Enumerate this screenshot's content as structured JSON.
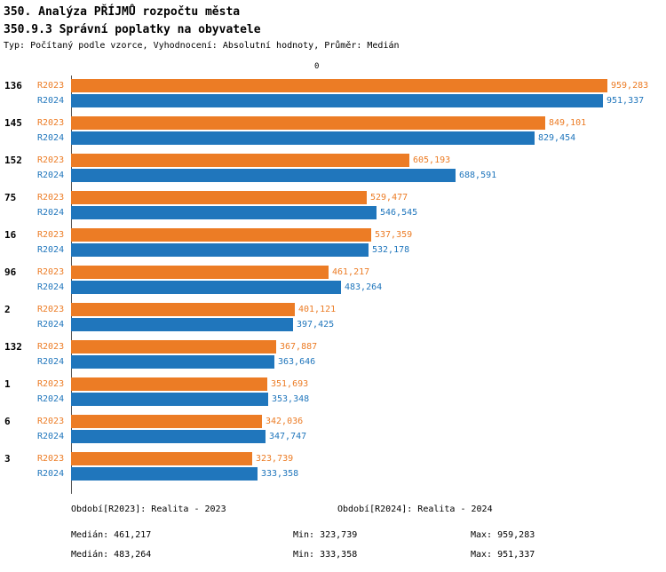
{
  "header": {
    "title": "350. Analýza PŘÍJMŮ rozpočtu města",
    "subtitle": "350.9.3 Správní poplatky na obyvatele",
    "meta": "Typ: Počítaný podle vzorce, Vyhodnocení: Absolutní hodnoty, Průměr: Medián"
  },
  "chart_data": {
    "type": "bar",
    "orientation": "horizontal",
    "axis_top_label": "0",
    "xlim": [
      0,
      960000
    ],
    "grid": false,
    "legend_position": "bottom",
    "series": [
      {
        "id": "R2023",
        "name": "R2023",
        "color": "#EC7C25",
        "median": 461217,
        "legend": "Období[R2023]: Realita - 2023",
        "median_label": "Medián: 461,217",
        "min_label": "Min: 323,739",
        "max_label": "Max: 959,283"
      },
      {
        "id": "R2024",
        "name": "R2024",
        "color": "#2076BC",
        "median": 483264,
        "legend": "Období[R2024]: Realita - 2024",
        "median_label": "Medián: 483,264",
        "min_label": "Min: 333,358",
        "max_label": "Max: 951,337"
      }
    ],
    "categories": [
      "136",
      "145",
      "152",
      "75",
      "16",
      "96",
      "2",
      "132",
      "1",
      "6",
      "3"
    ],
    "rows": [
      {
        "category": "136",
        "values": {
          "R2023": 959283,
          "R2024": 951337
        },
        "labels": {
          "R2023": "959,283",
          "R2024": "951,337"
        }
      },
      {
        "category": "145",
        "values": {
          "R2023": 849101,
          "R2024": 829454
        },
        "labels": {
          "R2023": "849,101",
          "R2024": "829,454"
        }
      },
      {
        "category": "152",
        "values": {
          "R2023": 605193,
          "R2024": 688591
        },
        "labels": {
          "R2023": "605,193",
          "R2024": "688,591"
        }
      },
      {
        "category": "75",
        "values": {
          "R2023": 529477,
          "R2024": 546545
        },
        "labels": {
          "R2023": "529,477",
          "R2024": "546,545"
        }
      },
      {
        "category": "16",
        "values": {
          "R2023": 537359,
          "R2024": 532178
        },
        "labels": {
          "R2023": "537,359",
          "R2024": "532,178"
        }
      },
      {
        "category": "96",
        "values": {
          "R2023": 461217,
          "R2024": 483264
        },
        "labels": {
          "R2023": "461,217",
          "R2024": "483,264"
        }
      },
      {
        "category": "2",
        "values": {
          "R2023": 401121,
          "R2024": 397425
        },
        "labels": {
          "R2023": "401,121",
          "R2024": "397,425"
        }
      },
      {
        "category": "132",
        "values": {
          "R2023": 367887,
          "R2024": 363646
        },
        "labels": {
          "R2023": "367,887",
          "R2024": "363,646"
        }
      },
      {
        "category": "1",
        "values": {
          "R2023": 351693,
          "R2024": 353348
        },
        "labels": {
          "R2023": "351,693",
          "R2024": "353,348"
        }
      },
      {
        "category": "6",
        "values": {
          "R2023": 342036,
          "R2024": 347747
        },
        "labels": {
          "R2023": "342,036",
          "R2024": "347,747"
        }
      },
      {
        "category": "3",
        "values": {
          "R2023": 323739,
          "R2024": 333358
        },
        "labels": {
          "R2023": "323,739",
          "R2024": "333,358"
        }
      }
    ]
  },
  "footer": {
    "legend_2023": "Období[R2023]: Realita - 2023",
    "legend_2024": "Období[R2024]: Realita - 2024",
    "stats_2023": {
      "median": "Medián: 461,217",
      "min": "Min: 323,739",
      "max": "Max: 959,283"
    },
    "stats_2024": {
      "median": "Medián: 483,264",
      "min": "Min: 333,358",
      "max": "Max: 951,337"
    }
  }
}
